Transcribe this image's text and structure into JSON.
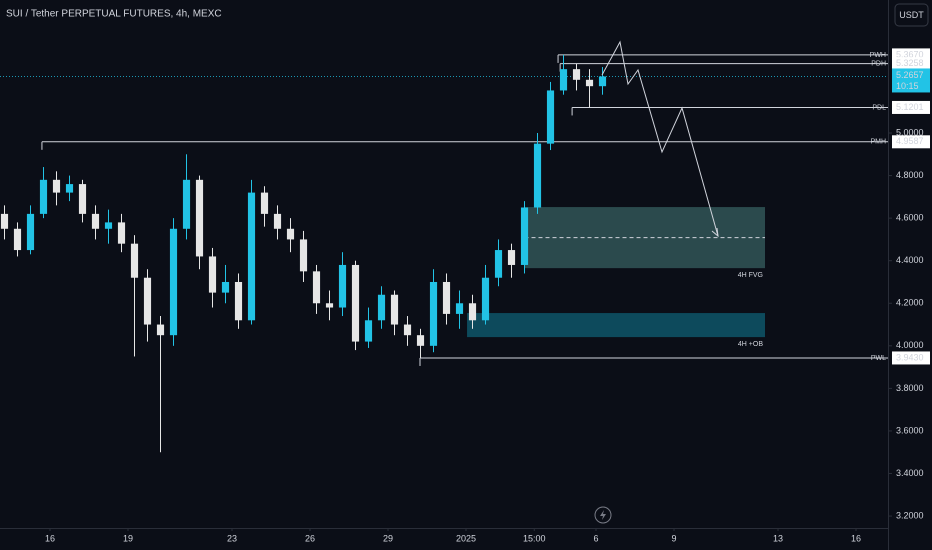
{
  "chart_data": {
    "type": "candlestick",
    "title": "SUI / Tether PERPETUAL FUTURES, 4h, MEXC",
    "currency": "USDT",
    "x": [
      -1.75,
      -1.25,
      -0.75,
      -0.25,
      0.25,
      0.75,
      1.25,
      1.75,
      2.25,
      2.75,
      3.25,
      3.75,
      4.25,
      4.75,
      5.25,
      5.75,
      6.25,
      6.75,
      7.25,
      7.75,
      8.25,
      8.75,
      9.25,
      9.75,
      10.25,
      10.75,
      11.25,
      11.75,
      12.25,
      12.75,
      13.25,
      13.75,
      14.25,
      14.75,
      15.25,
      15.75,
      16.25,
      16.75,
      17.25,
      17.75,
      18.25,
      18.75,
      19.25,
      19.75,
      20.25,
      20.75,
      21.25
    ],
    "open": [
      4.62,
      4.55,
      4.45,
      4.62,
      4.78,
      4.72,
      4.76,
      4.62,
      4.55,
      4.58,
      4.48,
      4.32,
      4.1,
      4.05,
      4.55,
      4.78,
      4.42,
      4.25,
      4.3,
      4.12,
      4.72,
      4.62,
      4.55,
      4.5,
      4.35,
      4.2,
      4.18,
      4.38,
      4.02,
      4.12,
      4.24,
      4.1,
      4.05,
      4.0,
      4.3,
      4.15,
      4.2,
      4.12,
      4.32,
      4.45,
      4.38,
      4.65,
      4.95,
      5.2,
      5.3,
      5.25,
      5.22
    ],
    "high": [
      4.66,
      4.58,
      4.66,
      4.84,
      4.82,
      4.8,
      4.78,
      4.66,
      4.64,
      4.62,
      4.52,
      4.36,
      4.14,
      4.6,
      4.9,
      4.8,
      4.46,
      4.38,
      4.34,
      4.78,
      4.75,
      4.66,
      4.6,
      4.54,
      4.38,
      4.26,
      4.44,
      4.4,
      4.18,
      4.28,
      4.26,
      4.14,
      4.08,
      4.36,
      4.34,
      4.26,
      4.24,
      4.38,
      4.5,
      4.48,
      4.68,
      5.0,
      5.24,
      5.367,
      5.3258,
      5.3,
      5.31
    ],
    "low": [
      4.5,
      4.42,
      4.43,
      4.6,
      4.66,
      4.68,
      4.58,
      4.5,
      4.48,
      4.44,
      3.95,
      4.02,
      3.5,
      4.0,
      4.5,
      4.36,
      4.18,
      4.2,
      4.08,
      4.1,
      4.56,
      4.5,
      4.44,
      4.3,
      4.15,
      4.12,
      4.14,
      3.98,
      3.99,
      4.08,
      4.05,
      4.0,
      3.943,
      3.97,
      4.1,
      4.08,
      4.08,
      4.1,
      4.28,
      4.32,
      4.34,
      4.62,
      4.92,
      5.18,
      5.2,
      5.1201,
      5.18
    ],
    "close": [
      4.55,
      4.45,
      4.62,
      4.78,
      4.72,
      4.76,
      4.62,
      4.55,
      4.58,
      4.48,
      4.32,
      4.1,
      4.05,
      4.55,
      4.78,
      4.42,
      4.25,
      4.3,
      4.12,
      4.72,
      4.62,
      4.55,
      4.5,
      4.35,
      4.2,
      4.18,
      4.38,
      4.02,
      4.12,
      4.24,
      4.1,
      4.05,
      4.0,
      4.3,
      4.15,
      4.2,
      4.12,
      4.32,
      4.45,
      4.38,
      4.65,
      4.95,
      5.2,
      5.3,
      5.25,
      5.22,
      5.2657
    ],
    "up_color": "#22c3e6",
    "down_color": "#e6e6e6",
    "xlim": [
      -1.923,
      32.23
    ],
    "xticks": [
      {
        "value": 0,
        "label": "16"
      },
      {
        "value": 3,
        "label": "19"
      },
      {
        "value": 7,
        "label": "23"
      },
      {
        "value": 10,
        "label": "26"
      },
      {
        "value": 13,
        "label": "29"
      },
      {
        "value": 16,
        "label": "2025"
      },
      {
        "value": 18.625,
        "label": "15:00"
      },
      {
        "value": 21,
        "label": "6"
      },
      {
        "value": 24,
        "label": "9"
      },
      {
        "value": 28,
        "label": "13"
      },
      {
        "value": 31,
        "label": "16"
      }
    ],
    "ylim": [
      3.144,
      5.625
    ],
    "yticks": [
      {
        "value": 5,
        "label": "5.0000"
      },
      {
        "value": 4.8,
        "label": "4.8000"
      },
      {
        "value": 4.6,
        "label": "4.6000"
      },
      {
        "value": 4.4,
        "label": "4.4000"
      },
      {
        "value": 4.2,
        "label": "4.2000"
      },
      {
        "value": 4,
        "label": "4.0000"
      },
      {
        "value": 3.8,
        "label": "3.8000"
      },
      {
        "value": 3.6,
        "label": "3.6000"
      },
      {
        "value": 3.4,
        "label": "3.4000"
      },
      {
        "value": 3.2,
        "label": "3.2000"
      }
    ],
    "levels": [
      {
        "name": "PWH",
        "value": 5.367,
        "label": "5.3670",
        "start": 19.54
      },
      {
        "name": "PDH",
        "value": 5.3258,
        "label": "5.3258",
        "start": 19.62
      },
      {
        "name": "PDL",
        "value": 5.1201,
        "label": "5.1201",
        "start": 20.08
      },
      {
        "name": "PMH",
        "value": 4.9587,
        "label": "4.9587",
        "start": -0.31
      },
      {
        "name": "PWL",
        "value": 3.943,
        "label": "3.9430",
        "start": 14.23
      }
    ],
    "zones": [
      {
        "label": "4H FVG",
        "top": 4.652,
        "bottom": 4.365,
        "start": 18.25,
        "end": 27.5,
        "color": "#2b4a4d",
        "midline": true
      },
      {
        "label": "4H +OB",
        "top": 4.154,
        "bottom": 4.041,
        "start": 16.04,
        "end": 27.5,
        "color": "#0d4a5c",
        "midline": false
      }
    ],
    "last_price": {
      "value": 5.2657,
      "label": "5.2657",
      "countdown": "10:15"
    }
  }
}
